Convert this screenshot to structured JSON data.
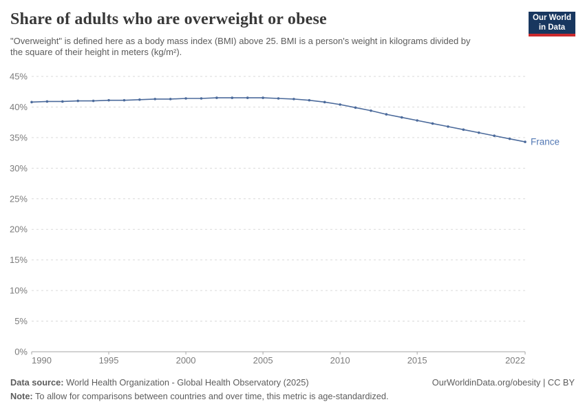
{
  "header": {
    "title": "Share of adults who are overweight or obese",
    "subtitle": "\"Overweight\" is defined here as a body mass index (BMI) above 25. BMI is a person's weight in kilograms divided by the square of their height in meters (kg/m²).",
    "logo": {
      "line1": "Our World",
      "line2": "in Data",
      "bg_color": "#18375f",
      "bar_color": "#cb2a2d",
      "text_color": "#ffffff"
    }
  },
  "chart_data": {
    "type": "line",
    "title": "Share of adults who are overweight or obese",
    "xlabel": "",
    "ylabel": "",
    "xlim": [
      1990,
      2022
    ],
    "ylim": [
      0,
      45
    ],
    "grid": "dashed-horizontal",
    "legend": "end-of-line-label",
    "x": [
      1990,
      1991,
      1992,
      1993,
      1994,
      1995,
      1996,
      1997,
      1998,
      1999,
      2000,
      2001,
      2002,
      2003,
      2004,
      2005,
      2006,
      2007,
      2008,
      2009,
      2010,
      2011,
      2012,
      2013,
      2014,
      2015,
      2016,
      2017,
      2018,
      2019,
      2020,
      2021,
      2022
    ],
    "series": [
      {
        "name": "France",
        "color": "#4b6a9b",
        "values": [
          40.8,
          40.9,
          40.9,
          41.0,
          41.0,
          41.1,
          41.1,
          41.2,
          41.3,
          41.3,
          41.4,
          41.4,
          41.5,
          41.5,
          41.5,
          41.5,
          41.4,
          41.3,
          41.1,
          40.8,
          40.4,
          39.9,
          39.4,
          38.8,
          38.3,
          37.8,
          37.3,
          36.8,
          36.3,
          35.8,
          35.3,
          34.8,
          34.3
        ]
      }
    ],
    "end_label": "France",
    "end_label_color": "#5378b4",
    "y_ticks": [
      {
        "value": 0,
        "label": "0%"
      },
      {
        "value": 5,
        "label": "5%"
      },
      {
        "value": 10,
        "label": "10%"
      },
      {
        "value": 15,
        "label": "15%"
      },
      {
        "value": 20,
        "label": "20%"
      },
      {
        "value": 25,
        "label": "25%"
      },
      {
        "value": 30,
        "label": "30%"
      },
      {
        "value": 35,
        "label": "35%"
      },
      {
        "value": 40,
        "label": "40%"
      },
      {
        "value": 45,
        "label": "45%"
      }
    ],
    "x_ticks": [
      {
        "value": 1990,
        "label": "1990"
      },
      {
        "value": 1995,
        "label": "1995"
      },
      {
        "value": 2000,
        "label": "2000"
      },
      {
        "value": 2005,
        "label": "2005"
      },
      {
        "value": 2010,
        "label": "2010"
      },
      {
        "value": 2015,
        "label": "2015"
      },
      {
        "value": 2022,
        "label": "2022"
      }
    ],
    "gridline_color": "#d9d9d9",
    "axis_color": "#a6a6a6",
    "tick_label_color": "#7b7b7b"
  },
  "footer": {
    "data_source_label": "Data source:",
    "data_source_text": "World Health Organization - Global Health Observatory (2025)",
    "credit": "OurWorldinData.org/obesity | CC BY",
    "note_label": "Note:",
    "note_text": "To allow for comparisons between countries and over time, this metric is age-standardized."
  }
}
